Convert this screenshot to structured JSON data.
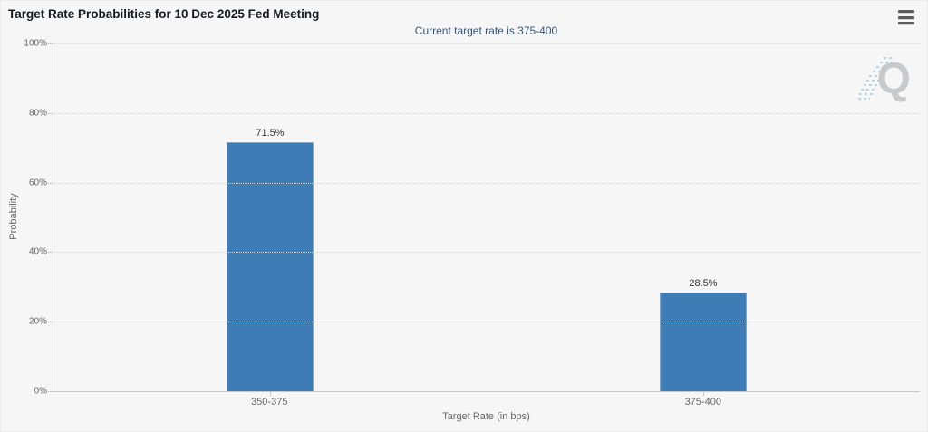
{
  "card": {
    "menu_tooltip": "chart context menu"
  },
  "watermark": {
    "letter": "Q"
  },
  "chart_data": {
    "type": "bar",
    "title": "Target Rate Probabilities for 10 Dec 2025 Fed Meeting",
    "subtitle": "Current target rate is 375-400",
    "categories": [
      "350-375",
      "375-400"
    ],
    "values": [
      71.5,
      28.5
    ],
    "value_labels": [
      "71.5%",
      "28.5%"
    ],
    "xlabel": "Target Rate (in bps)",
    "ylabel": "Probability",
    "ylim": [
      0,
      100
    ],
    "yticks": [
      0,
      20,
      40,
      60,
      80,
      100
    ],
    "ytick_labels": [
      "0%",
      "20%",
      "40%",
      "60%",
      "80%",
      "100%"
    ],
    "grid": "dotted horizontal gridlines",
    "legend_position": "none",
    "bar_color": "#3e7cb5",
    "subtitle_color": "#33567a",
    "axis_text_color": "#666666"
  }
}
